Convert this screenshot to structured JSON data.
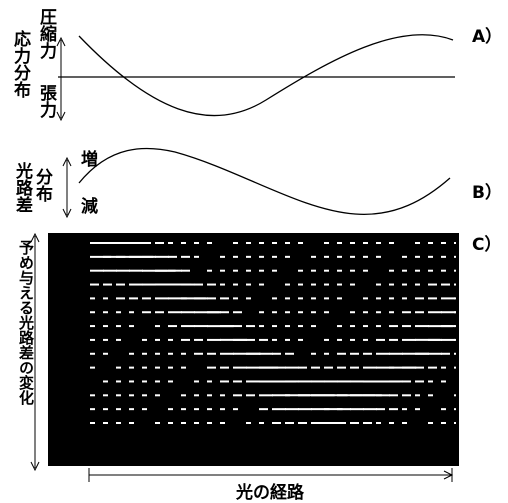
{
  "panel_a": {
    "tag": "A）",
    "y_label": "応力分布",
    "upper_label": "圧縮力",
    "lower_label": "張力"
  },
  "panel_b": {
    "tag": "B）",
    "y_label_line1": "光路差",
    "y_label_line2": "分布",
    "upper_label": "増",
    "lower_label": "減"
  },
  "panel_c": {
    "tag": "C）",
    "y_label": "予め与える光路差の変化",
    "x_label": "光の経路"
  },
  "colors": {
    "line": "#000000",
    "panel_background": "#000000",
    "dash": "#ffffff"
  }
}
